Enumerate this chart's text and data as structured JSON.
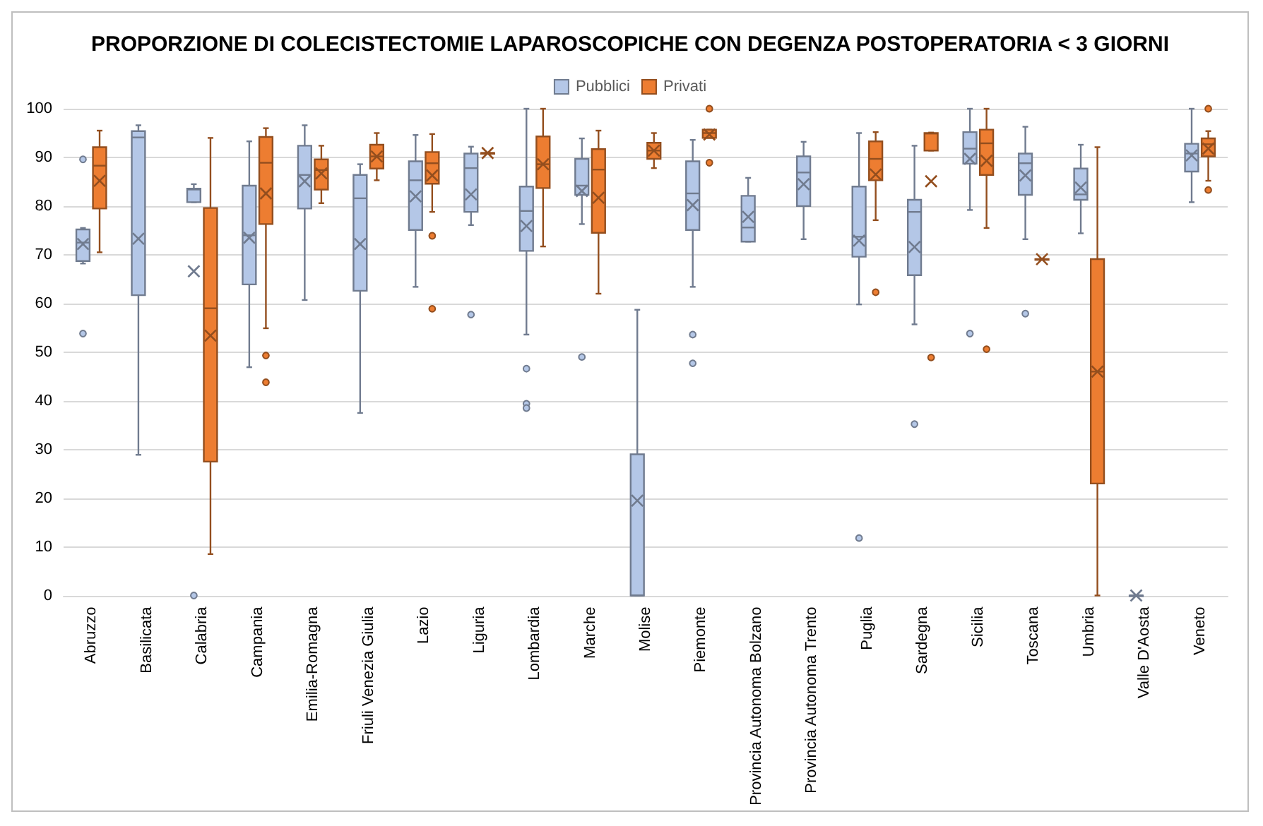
{
  "chart_data": {
    "type": "box",
    "title": "PROPORZIONE DI COLECISTECTOMIE LAPAROSCOPICHE CON DEGENZA POSTOPERATORIA < 3 GIORNI",
    "categories": [
      "Abruzzo",
      "Basilicata",
      "Calabria",
      "Campania",
      "Emilia-Romagna",
      "Friuli Venezia Giulia",
      "Lazio",
      "Liguria",
      "Lombardia",
      "Marche",
      "Molise",
      "Piemonte",
      "Provincia Autonoma Bolzano",
      "Provincia Autonoma Trento",
      "Puglia",
      "Sardegna",
      "Sicilia",
      "Toscana",
      "Umbria",
      "Valle D'Aosta",
      "Veneto"
    ],
    "ylim": [
      0,
      100
    ],
    "yticks": [
      0,
      10,
      20,
      30,
      40,
      50,
      60,
      70,
      80,
      90,
      100
    ],
    "grid": "y",
    "legend": "top",
    "series": [
      {
        "name": "Pubblici",
        "color": "#b4c7e7",
        "boxes": [
          {
            "low": 68.2,
            "q1": 68.7,
            "median": 72.5,
            "q3": 75.2,
            "high": 75.5,
            "mean": 72.2,
            "outliers": [
              89.6,
              53.8
            ]
          },
          {
            "low": 28.9,
            "q1": 61.7,
            "median": 94.1,
            "q3": 95.4,
            "high": 96.6,
            "mean": 73.3
          },
          {
            "low": 80.8,
            "q1": 80.8,
            "median": 83.4,
            "q3": 83.6,
            "high": 84.5,
            "mean": 66.6,
            "outliers": [
              0
            ]
          },
          {
            "low": 46.9,
            "q1": 63.9,
            "median": 74,
            "q3": 84.2,
            "high": 93.3,
            "mean": 73.5
          },
          {
            "low": 60.7,
            "q1": 79.5,
            "median": 86.4,
            "q3": 92.4,
            "high": 96.6,
            "mean": 85.1
          },
          {
            "low": 37.5,
            "q1": 62.6,
            "median": 81.6,
            "q3": 86.4,
            "high": 88.6,
            "mean": 72.2
          },
          {
            "low": 63.4,
            "q1": 75.1,
            "median": 85.3,
            "q3": 89.2,
            "high": 94.6,
            "mean": 82
          },
          {
            "low": 76.1,
            "q1": 78.8,
            "median": 87.8,
            "q3": 90.8,
            "high": 92.2,
            "mean": 82.4,
            "outliers": [
              57.7
            ]
          },
          {
            "low": 53.6,
            "q1": 70.8,
            "median": 79,
            "q3": 84,
            "high": 100,
            "mean": 75.9,
            "outliers": [
              46.6,
              39.4,
              38.5
            ]
          },
          {
            "low": 76.3,
            "q1": 82.3,
            "median": 84.2,
            "q3": 89.7,
            "high": 93.9,
            "mean": 83.1,
            "outliers": [
              49
            ]
          },
          {
            "low": 0,
            "q1": 0,
            "median": 0,
            "q3": 29,
            "high": 58.7,
            "mean": 19.5
          },
          {
            "low": 63.4,
            "q1": 75.1,
            "median": 82.6,
            "q3": 89.2,
            "high": 93.6,
            "mean": 80.2,
            "outliers": [
              53.6,
              47.7
            ]
          },
          {
            "low": 72.7,
            "q1": 72.7,
            "median": 75.6,
            "q3": 82.1,
            "high": 85.8,
            "mean": 77.8
          },
          {
            "low": 73.2,
            "q1": 80,
            "median": 86.9,
            "q3": 90.2,
            "high": 93.2,
            "mean": 84.5
          },
          {
            "low": 59.8,
            "q1": 69.6,
            "median": 73.7,
            "q3": 84,
            "high": 95,
            "mean": 72.9,
            "outliers": [
              11.8
            ]
          },
          {
            "low": 55.7,
            "q1": 65.8,
            "median": 78.8,
            "q3": 81.3,
            "high": 92.4,
            "mean": 71.6,
            "outliers": [
              35.2
            ]
          },
          {
            "low": 79.2,
            "q1": 88.7,
            "median": 91.8,
            "q3": 95.2,
            "high": 100,
            "mean": 89.7,
            "outliers": [
              53.8
            ]
          },
          {
            "low": 73.2,
            "q1": 82.3,
            "median": 88.8,
            "q3": 90.8,
            "high": 96.3,
            "mean": 86.3,
            "outliers": [
              57.9
            ]
          },
          {
            "low": 74.4,
            "q1": 81.3,
            "median": 82.4,
            "q3": 87.7,
            "high": 92.6,
            "mean": 83.8
          },
          {
            "low": 0,
            "q1": 0,
            "median": 0,
            "q3": 0,
            "high": 0,
            "mean": 0
          },
          {
            "low": 80.8,
            "q1": 87.1,
            "median": 90.8,
            "q3": 92.8,
            "high": 100,
            "mean": 90.4
          }
        ]
      },
      {
        "name": "Privati",
        "color": "#ed7d31",
        "boxes": [
          {
            "low": 70.5,
            "q1": 79.5,
            "median": 88.3,
            "q3": 92.1,
            "high": 95.5,
            "mean": 85.2
          },
          null,
          {
            "low": 8.5,
            "q1": 27.5,
            "median": 59,
            "q3": 79.6,
            "high": 94,
            "mean": 53.4
          },
          {
            "low": 54.9,
            "q1": 76.3,
            "median": 88.9,
            "q3": 94.2,
            "high": 96,
            "mean": 82.6,
            "outliers": [
              49.3,
              43.8
            ]
          },
          {
            "low": 80.6,
            "q1": 83.4,
            "median": 87.4,
            "q3": 89.6,
            "high": 92.4,
            "mean": 86.7
          },
          {
            "low": 85.3,
            "q1": 87.7,
            "median": 90.2,
            "q3": 92.6,
            "high": 95,
            "mean": 90.2
          },
          {
            "low": 78.8,
            "q1": 84.6,
            "median": 88.8,
            "q3": 91.1,
            "high": 94.8,
            "mean": 86.3,
            "outliers": [
              73.9,
              58.9
            ]
          },
          {
            "low": 90.9,
            "q1": 90.9,
            "median": 90.9,
            "q3": 90.9,
            "high": 90.9,
            "mean": 90.9
          },
          {
            "low": 71.7,
            "q1": 83.7,
            "median": 88.6,
            "q3": 94.3,
            "high": 100,
            "mean": 88.6
          },
          {
            "low": 62,
            "q1": 74.5,
            "median": 87.5,
            "q3": 91.7,
            "high": 95.5,
            "mean": 81.7
          },
          {
            "low": 87.8,
            "q1": 89.7,
            "median": 91.4,
            "q3": 93,
            "high": 95,
            "mean": 91.4
          },
          {
            "low": 94,
            "q1": 94,
            "median": 95,
            "q3": 95.7,
            "high": 95.7,
            "mean": 94.7,
            "outliers": [
              100,
              88.9
            ]
          },
          null,
          null,
          {
            "low": 77.1,
            "q1": 85.3,
            "median": 89.7,
            "q3": 93.3,
            "high": 95.2,
            "mean": 86.5,
            "outliers": [
              62.3
            ]
          },
          {
            "low": 91.4,
            "q1": 91.4,
            "median": 94.9,
            "q3": 95,
            "high": 95.1,
            "mean": 85.1,
            "outliers": [
              48.9
            ]
          },
          {
            "low": 75.5,
            "q1": 86.4,
            "median": 92.9,
            "q3": 95.7,
            "high": 100,
            "mean": 89.3,
            "outliers": [
              50.6
            ]
          },
          {
            "low": 69.1,
            "q1": 69.1,
            "median": 69.1,
            "q3": 69.1,
            "high": 69.1,
            "mean": 69.1
          },
          {
            "low": 0,
            "q1": 23,
            "median": 46,
            "q3": 69.1,
            "high": 92.1,
            "mean": 46
          },
          null,
          {
            "low": 85.2,
            "q1": 90.2,
            "median": 92.7,
            "q3": 93.9,
            "high": 95.4,
            "mean": 91.8,
            "outliers": [
              100,
              83.3
            ]
          }
        ]
      }
    ]
  }
}
